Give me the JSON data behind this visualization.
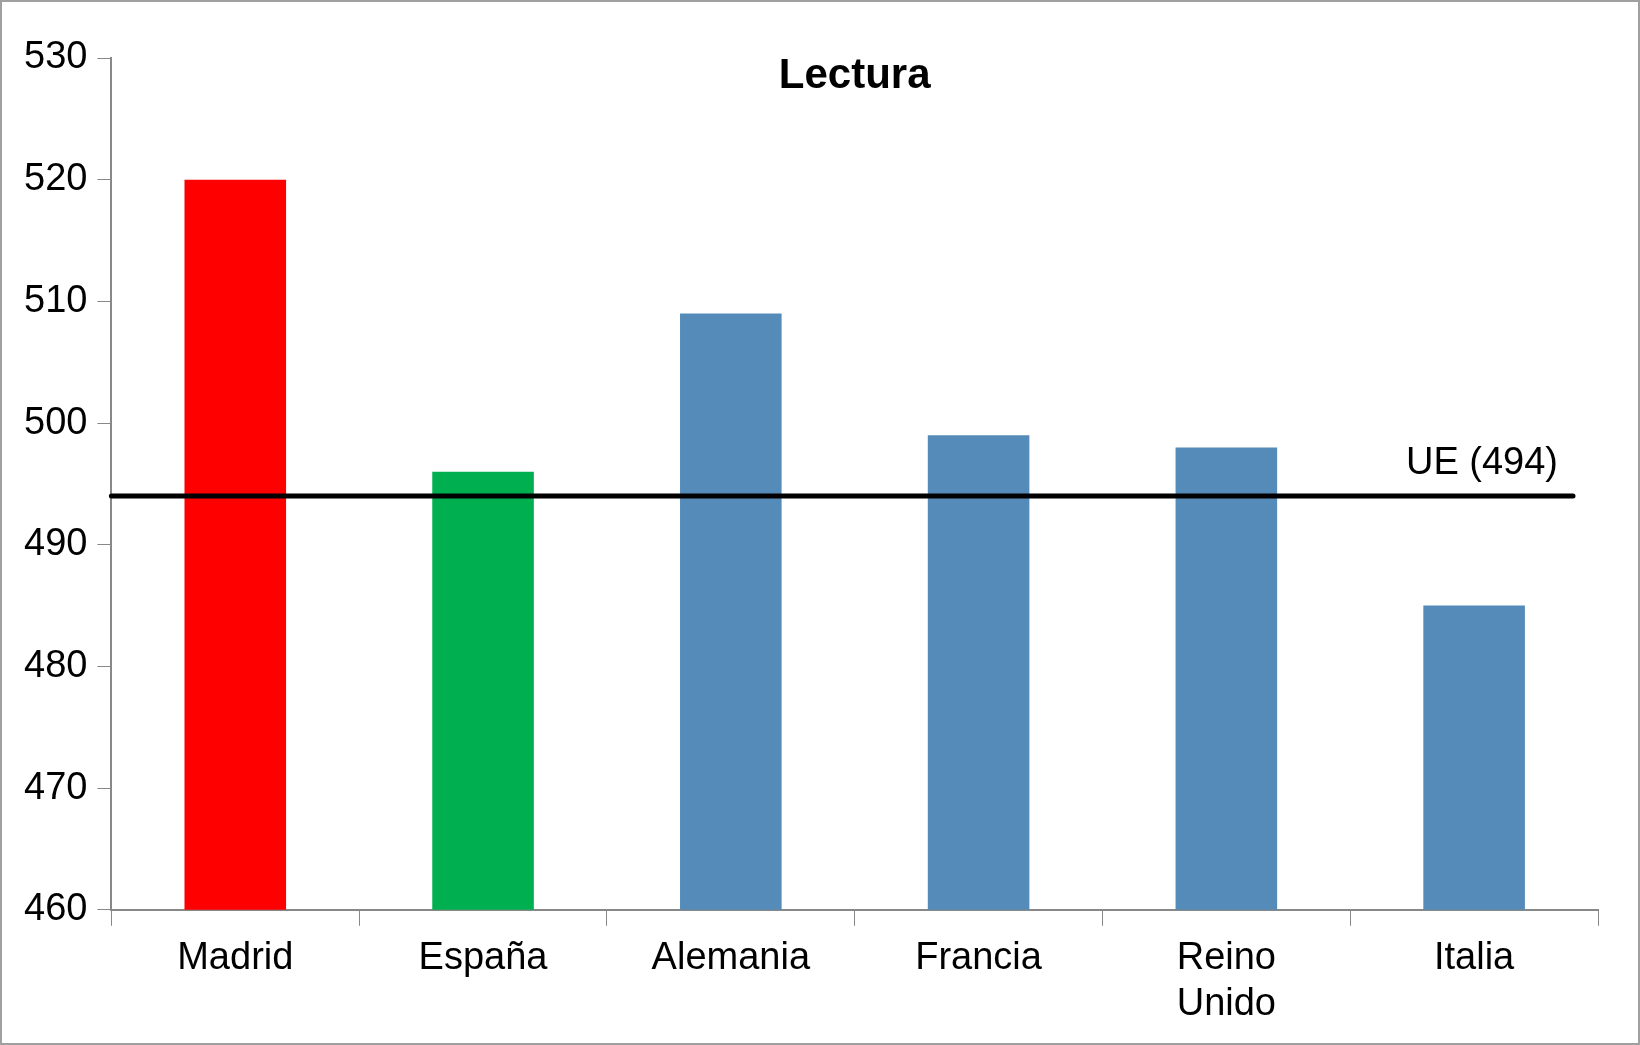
{
  "chart_data": {
    "type": "bar",
    "title": "Lectura",
    "categories": [
      "Madrid",
      "España",
      "Alemania",
      "Francia",
      "Reino Unido",
      "Italia"
    ],
    "values": [
      520,
      496,
      509,
      499,
      498,
      485
    ],
    "colors": [
      "#ff0000",
      "#00b050",
      "#558bb9",
      "#558bb9",
      "#558bb9",
      "#558bb9"
    ],
    "ylim": [
      460,
      530
    ],
    "yticks": [
      460,
      470,
      480,
      490,
      500,
      510,
      520,
      530
    ],
    "ref_lines": [
      {
        "axis": "y",
        "value": 494,
        "label": "UE (494)",
        "color": "#000000"
      }
    ]
  }
}
